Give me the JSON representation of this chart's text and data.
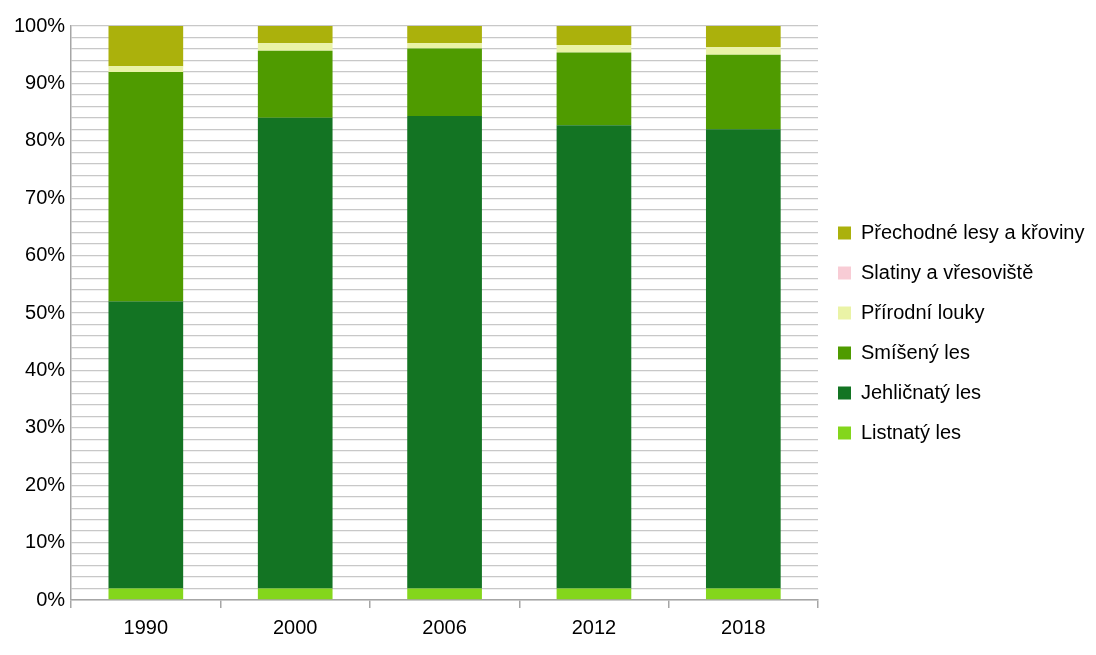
{
  "chart_data": {
    "type": "bar",
    "stacked": true,
    "categories": [
      "1990",
      "2000",
      "2006",
      "2012",
      "2018"
    ],
    "series": [
      {
        "name": "Listnatý les",
        "color": "#84d61c",
        "values": [
          2,
          2,
          2,
          2,
          2
        ]
      },
      {
        "name": "Jehličnatý les",
        "color": "#137423",
        "values": [
          50,
          82,
          82.3,
          80.7,
          80
        ]
      },
      {
        "name": "Smíšený les",
        "color": "#4f9b00",
        "values": [
          40,
          11.7,
          11.8,
          12.7,
          13
        ]
      },
      {
        "name": "Přírodní louky",
        "color": "#eaf3a6",
        "values": [
          1,
          1.3,
          0.9,
          1.3,
          1.3
        ]
      },
      {
        "name": "Slatiny a vřesoviště",
        "color": "#f8ccd5",
        "values": [
          0,
          0,
          0,
          0,
          0
        ]
      },
      {
        "name": "Přechodné lesy a křoviny",
        "color": "#abb10c",
        "values": [
          7,
          3,
          3,
          3.3,
          3.7
        ]
      }
    ],
    "ylim": [
      0,
      100
    ],
    "yticks": [
      {
        "value": 0,
        "label": "0%"
      },
      {
        "value": 2,
        "label": null
      },
      {
        "value": 4,
        "label": null
      },
      {
        "value": 6,
        "label": null
      },
      {
        "value": 8,
        "label": null
      },
      {
        "value": 10,
        "label": "10%"
      },
      {
        "value": 12,
        "label": null
      },
      {
        "value": 14,
        "label": null
      },
      {
        "value": 16,
        "label": null
      },
      {
        "value": 18,
        "label": null
      },
      {
        "value": 20,
        "label": "20%"
      },
      {
        "value": 22,
        "label": null
      },
      {
        "value": 24,
        "label": null
      },
      {
        "value": 26,
        "label": null
      },
      {
        "value": 28,
        "label": null
      },
      {
        "value": 30,
        "label": "30%"
      },
      {
        "value": 32,
        "label": null
      },
      {
        "value": 34,
        "label": null
      },
      {
        "value": 36,
        "label": null
      },
      {
        "value": 38,
        "label": null
      },
      {
        "value": 40,
        "label": "40%"
      },
      {
        "value": 42,
        "label": null
      },
      {
        "value": 44,
        "label": null
      },
      {
        "value": 46,
        "label": null
      },
      {
        "value": 48,
        "label": null
      },
      {
        "value": 50,
        "label": "50%"
      },
      {
        "value": 52,
        "label": null
      },
      {
        "value": 54,
        "label": null
      },
      {
        "value": 56,
        "label": null
      },
      {
        "value": 58,
        "label": null
      },
      {
        "value": 60,
        "label": "60%"
      },
      {
        "value": 62,
        "label": null
      },
      {
        "value": 64,
        "label": null
      },
      {
        "value": 66,
        "label": null
      },
      {
        "value": 68,
        "label": null
      },
      {
        "value": 70,
        "label": "70%"
      },
      {
        "value": 72,
        "label": null
      },
      {
        "value": 74,
        "label": null
      },
      {
        "value": 76,
        "label": null
      },
      {
        "value": 78,
        "label": null
      },
      {
        "value": 80,
        "label": "80%"
      },
      {
        "value": 82,
        "label": null
      },
      {
        "value": 84,
        "label": null
      },
      {
        "value": 86,
        "label": null
      },
      {
        "value": 88,
        "label": null
      },
      {
        "value": 90,
        "label": "90%"
      },
      {
        "value": 92,
        "label": null
      },
      {
        "value": 94,
        "label": null
      },
      {
        "value": 96,
        "label": null
      },
      {
        "value": 98,
        "label": null
      },
      {
        "value": 100,
        "label": "100%"
      }
    ],
    "grid": "y",
    "legend": "right"
  }
}
